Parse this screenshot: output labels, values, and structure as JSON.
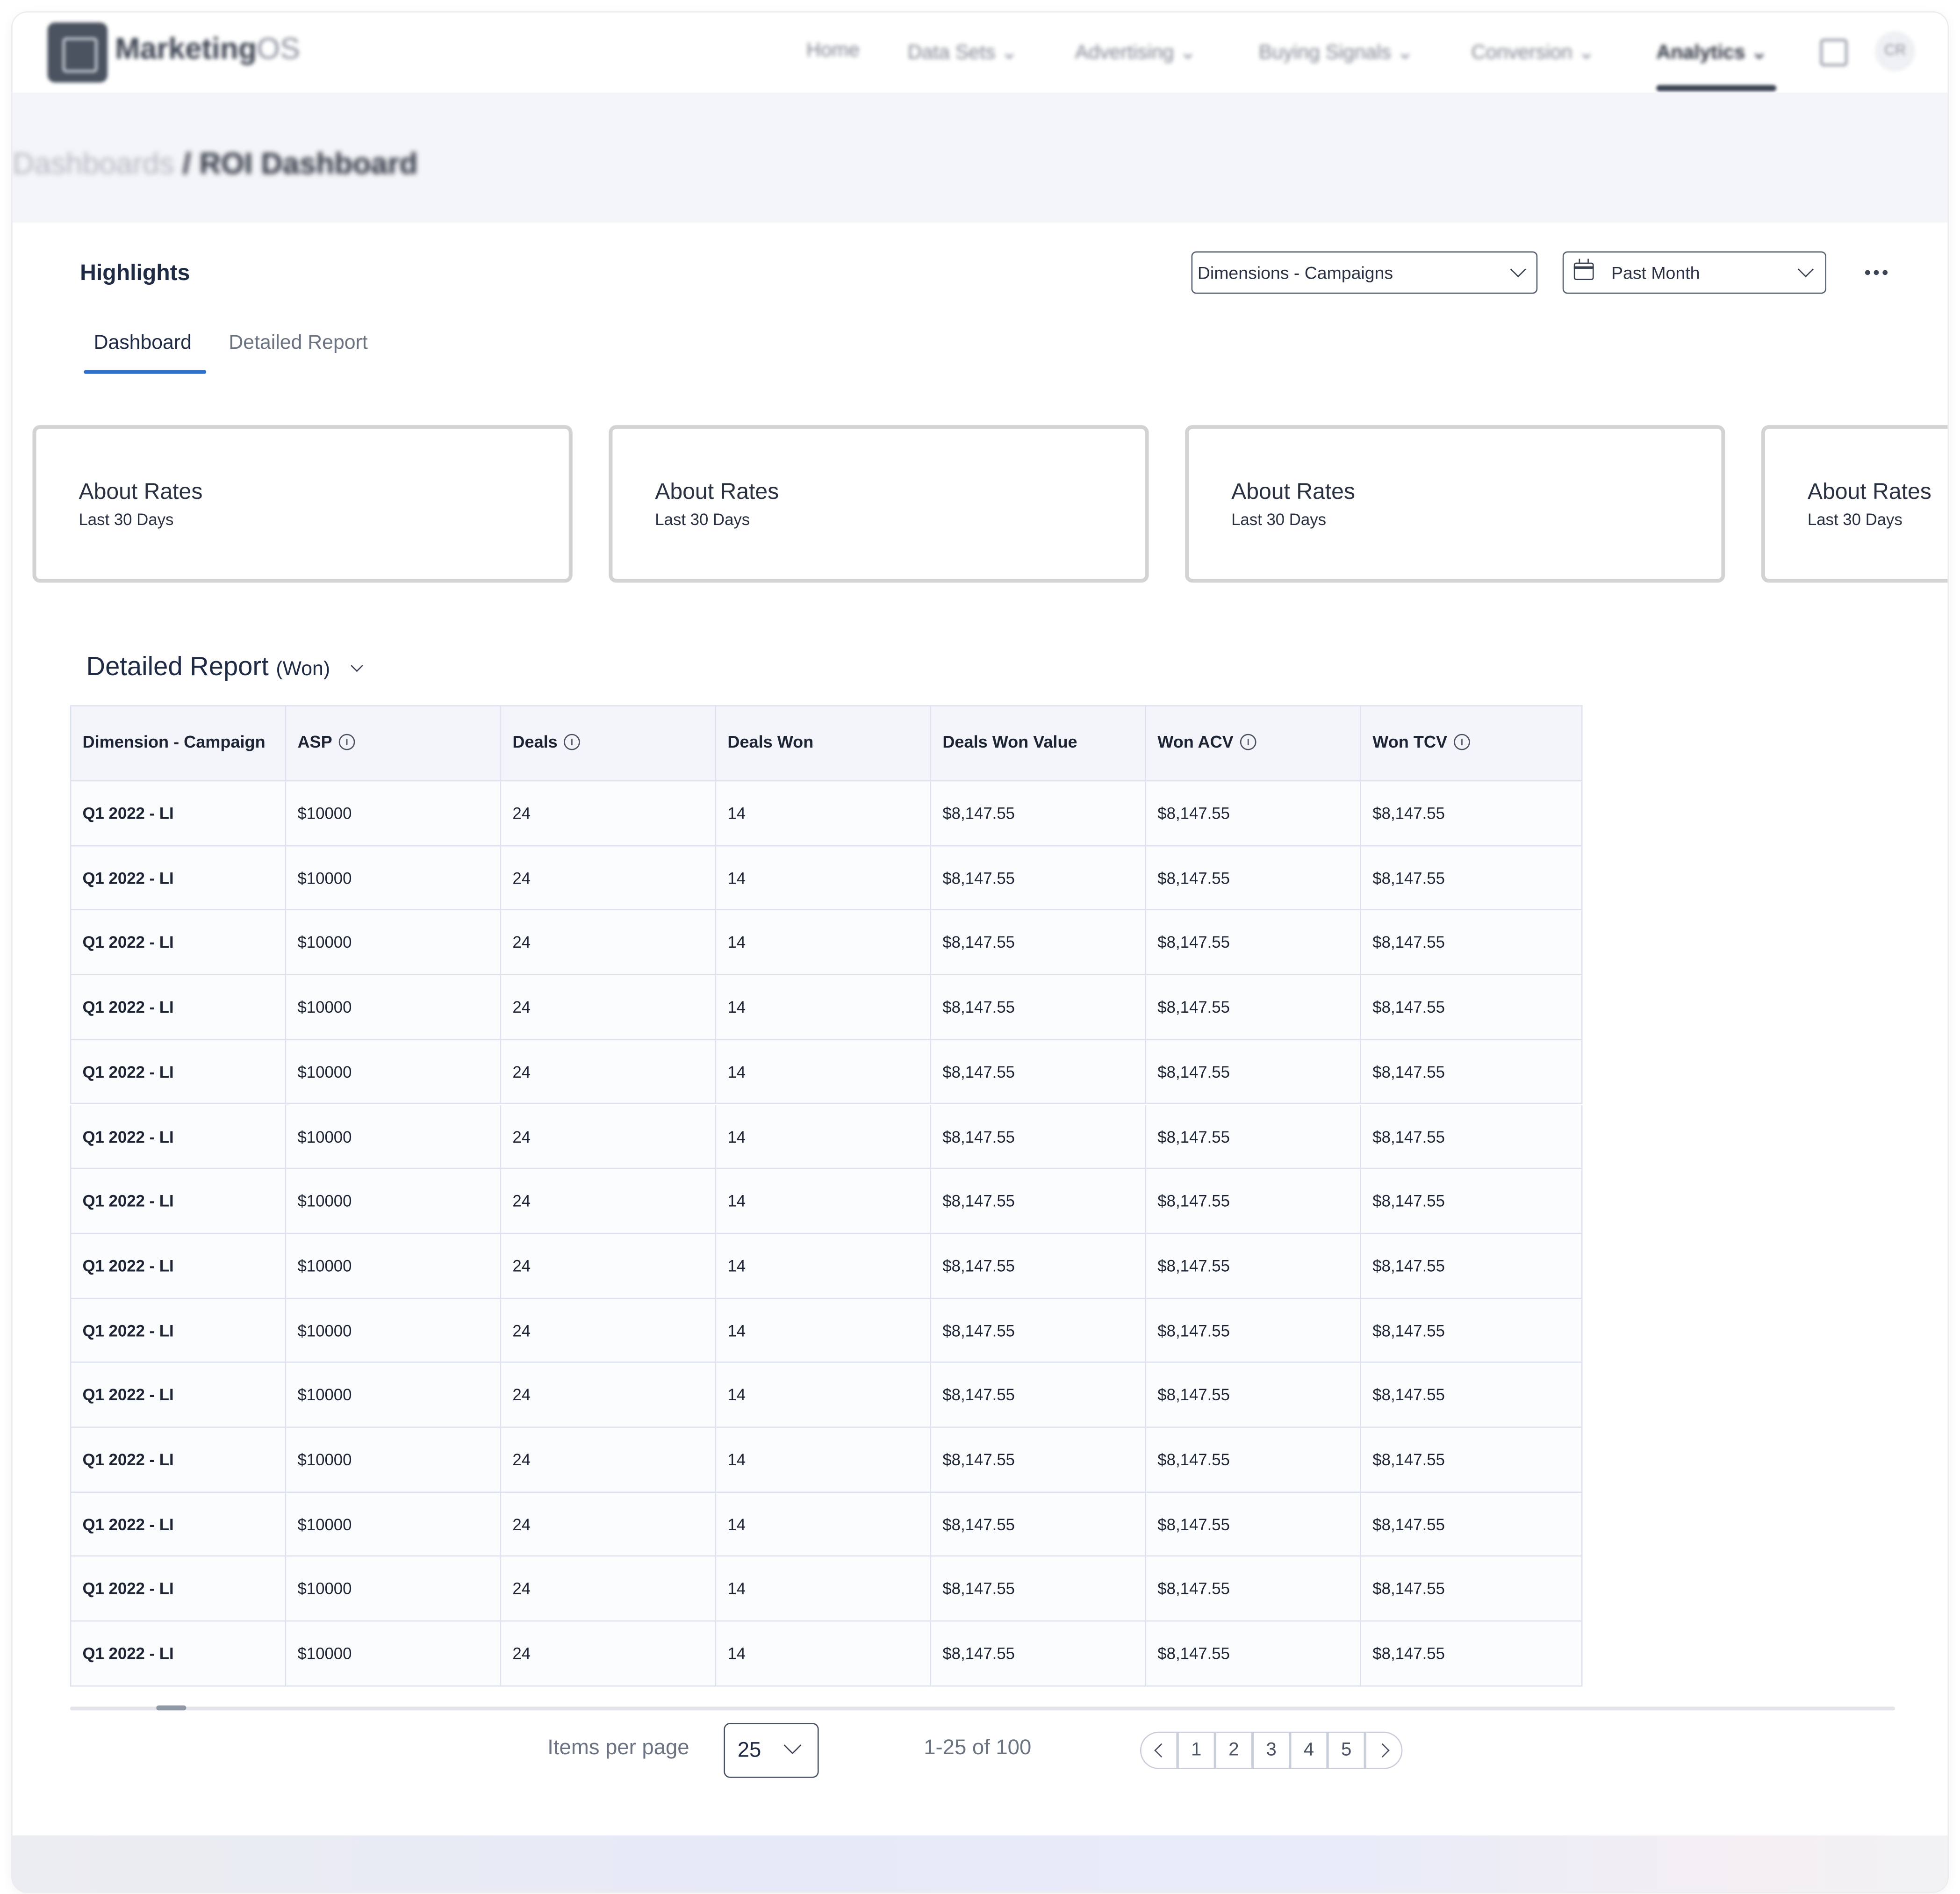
{
  "nav": {
    "logo_main": "Marketing",
    "logo_suffix": "OS",
    "items": [
      "Home",
      "Data Sets",
      "Advertising",
      "Buying Signals",
      "Conversion",
      "Analytics"
    ],
    "avatar_initials": "CR"
  },
  "breadcrumb": {
    "parent": "Dashboards",
    "separator": " / ",
    "current": "ROI Dashboard"
  },
  "highlights": {
    "title": "Highlights",
    "dimension_select": "Dimensions - Campaigns",
    "period_select": "Past Month"
  },
  "tabs": [
    "Dashboard",
    "Detailed Report"
  ],
  "cards": [
    {
      "title": "About Rates",
      "subtitle": "Last 30 Days"
    },
    {
      "title": "About Rates",
      "subtitle": "Last 30 Days"
    },
    {
      "title": "About Rates",
      "subtitle": "Last 30 Days"
    },
    {
      "title": "About Rates",
      "subtitle": "Last 30 Days"
    }
  ],
  "report": {
    "title": "Detailed Report",
    "qualifier": "(Won)",
    "columns": [
      {
        "label": "Dimension - Campaign",
        "info": false
      },
      {
        "label": "ASP",
        "info": true
      },
      {
        "label": "Deals",
        "info": true
      },
      {
        "label": "Deals Won",
        "info": false
      },
      {
        "label": "Deals Won Value",
        "info": false
      },
      {
        "label": "Won ACV",
        "info": true
      },
      {
        "label": "Won TCV",
        "info": true
      }
    ],
    "rows": [
      [
        "Q1 2022 - LI",
        "$10000",
        "24",
        "14",
        "$8,147.55",
        "$8,147.55",
        "$8,147.55"
      ],
      [
        "Q1 2022 - LI",
        "$10000",
        "24",
        "14",
        "$8,147.55",
        "$8,147.55",
        "$8,147.55"
      ],
      [
        "Q1 2022 - LI",
        "$10000",
        "24",
        "14",
        "$8,147.55",
        "$8,147.55",
        "$8,147.55"
      ],
      [
        "Q1 2022 - LI",
        "$10000",
        "24",
        "14",
        "$8,147.55",
        "$8,147.55",
        "$8,147.55"
      ],
      [
        "Q1 2022 - LI",
        "$10000",
        "24",
        "14",
        "$8,147.55",
        "$8,147.55",
        "$8,147.55"
      ],
      [
        "Q1 2022 - LI",
        "$10000",
        "24",
        "14",
        "$8,147.55",
        "$8,147.55",
        "$8,147.55"
      ],
      [
        "Q1 2022 - LI",
        "$10000",
        "24",
        "14",
        "$8,147.55",
        "$8,147.55",
        "$8,147.55"
      ],
      [
        "Q1 2022 - LI",
        "$10000",
        "24",
        "14",
        "$8,147.55",
        "$8,147.55",
        "$8,147.55"
      ],
      [
        "Q1 2022 - LI",
        "$10000",
        "24",
        "14",
        "$8,147.55",
        "$8,147.55",
        "$8,147.55"
      ],
      [
        "Q1 2022 - LI",
        "$10000",
        "24",
        "14",
        "$8,147.55",
        "$8,147.55",
        "$8,147.55"
      ],
      [
        "Q1 2022 - LI",
        "$10000",
        "24",
        "14",
        "$8,147.55",
        "$8,147.55",
        "$8,147.55"
      ],
      [
        "Q1 2022 - LI",
        "$10000",
        "24",
        "14",
        "$8,147.55",
        "$8,147.55",
        "$8,147.55"
      ],
      [
        "Q1 2022 - LI",
        "$10000",
        "24",
        "14",
        "$8,147.55",
        "$8,147.55",
        "$8,147.55"
      ],
      [
        "Q1 2022 - LI",
        "$10000",
        "24",
        "14",
        "$8,147.55",
        "$8,147.55",
        "$8,147.55"
      ]
    ]
  },
  "pagination": {
    "items_per_page_label": "Items per page",
    "items_per_page_value": "25",
    "range_text": "1-25 of 100",
    "pages": [
      "1",
      "2",
      "3",
      "4",
      "5"
    ]
  },
  "colors": {
    "accent": "#2e6fc7",
    "header_bg": "#f3f5fa",
    "text": "#1d2433",
    "border": "#dde3ee"
  }
}
